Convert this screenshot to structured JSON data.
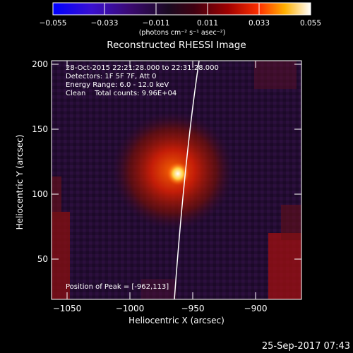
{
  "colorbar": {
    "ticks": [
      "−0.055",
      "−0.033",
      "−0.011",
      "0.011",
      "0.033",
      "0.055"
    ],
    "unit_label": "(photons cm⁻² s⁻¹ asec⁻²)"
  },
  "title": "Reconstructed RHESSI Image",
  "info": {
    "time_range": "28-Oct-2015 22:21:28.000 to 22:31:28.000",
    "detectors": "Detectors: 1F 5F 7F, Att 0",
    "energy": "Energy Range: 6.0 - 12.0 keV",
    "clean": "Clean    Total counts: 9.96E+04"
  },
  "peak_label": "Position of Peak = [-962,113]",
  "axes": {
    "xlabel": "Heliocentric X (arcsec)",
    "ylabel": "Heliocentric Y (arcsec)",
    "x_ticks": [
      "−1050",
      "−1000",
      "−950",
      "−900"
    ],
    "y_ticks": [
      "200",
      "150",
      "100",
      "50"
    ]
  },
  "timestamp": "25-Sep-2017 07:43",
  "colors": {
    "background": "#000000",
    "colormap": [
      "#0000ff",
      "#4b00aa",
      "#2a0a3a",
      "#400020",
      "#a00000",
      "#ff4000",
      "#ffc000",
      "#ffffff"
    ],
    "limb": "#ffffff"
  }
}
